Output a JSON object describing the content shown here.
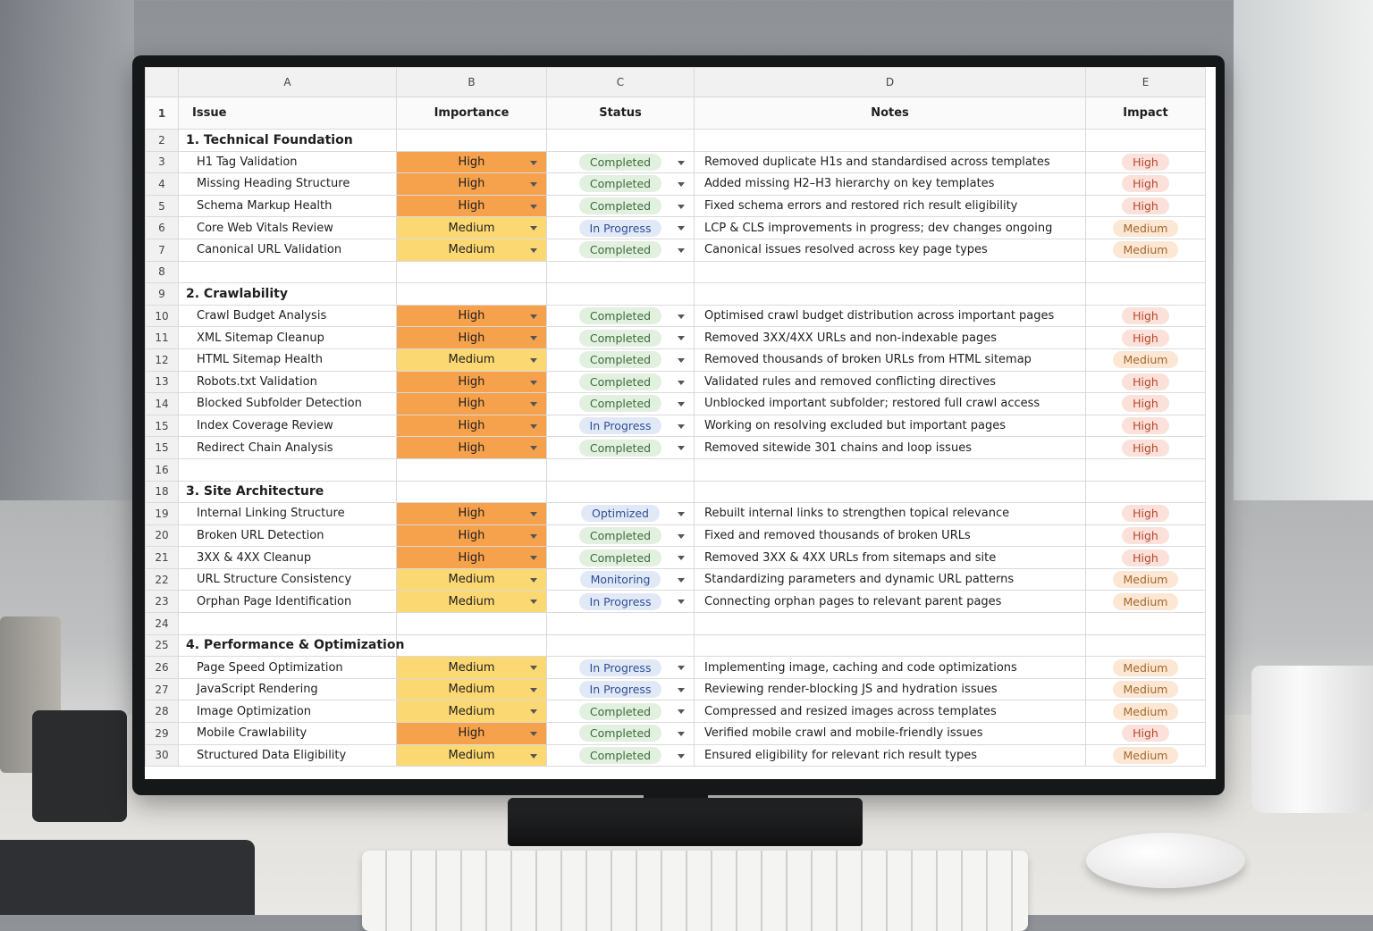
{
  "columns": [
    "A",
    "B",
    "C",
    "D",
    "E"
  ],
  "header": {
    "row": "1",
    "cells": [
      "Issue",
      "Importance",
      "Status",
      "Notes",
      "Impact"
    ]
  },
  "importance_colors": {
    "High": "#f6a14c",
    "Medium": "#fcd873"
  },
  "status_colors": {
    "Completed": [
      "#e2f0df",
      "#3d6b3b"
    ],
    "In Progress": [
      "#e2e9f6",
      "#2c4f96"
    ],
    "Optimized": [
      "#e2e9f6",
      "#2c4f96"
    ],
    "Monitoring": [
      "#e2e9f6",
      "#2c4f96"
    ]
  },
  "impact_colors": {
    "High": [
      "#fbe1da",
      "#b5472c"
    ],
    "Medium": [
      "#fbe7d4",
      "#a5682a"
    ]
  },
  "rows": [
    {
      "num": "2",
      "section": "1. Technical Foundation"
    },
    {
      "num": "3",
      "issue": "H1 Tag Validation",
      "importance": "High",
      "status": "Completed",
      "notes": "Removed duplicate H1s and standardised across templates",
      "impact": "High"
    },
    {
      "num": "4",
      "issue": "Missing Heading Structure",
      "importance": "High",
      "status": "Completed",
      "notes": "Added missing H2–H3 hierarchy on key templates",
      "impact": "High"
    },
    {
      "num": "5",
      "issue": "Schema Markup Health",
      "importance": "High",
      "status": "Completed",
      "notes": "Fixed schema errors and restored rich result eligibility",
      "impact": "High"
    },
    {
      "num": "6",
      "issue": "Core Web Vitals Review",
      "importance": "Medium",
      "status": "In Progress",
      "notes": "LCP & CLS improvements in progress; dev changes ongoing",
      "impact": "Medium"
    },
    {
      "num": "7",
      "issue": "Canonical URL Validation",
      "importance": "Medium",
      "status": "Completed",
      "notes": "Canonical issues resolved across key page types",
      "impact": "Medium"
    },
    {
      "num": "8"
    },
    {
      "num": "9",
      "section": "2. Crawlability"
    },
    {
      "num": "10",
      "issue": "Crawl Budget Analysis",
      "importance": "High",
      "status": "Completed",
      "notes": "Optimised crawl budget distribution across important pages",
      "impact": "High"
    },
    {
      "num": "11",
      "issue": "XML Sitemap Cleanup",
      "importance": "High",
      "status": "Completed",
      "notes": "Removed 3XX/4XX URLs and non-indexable pages",
      "impact": "High"
    },
    {
      "num": "12",
      "issue": "HTML Sitemap Health",
      "importance": "Medium",
      "status": "Completed",
      "notes": "Removed thousands of broken URLs from HTML sitemap",
      "impact": "Medium"
    },
    {
      "num": "13",
      "issue": "Robots.txt Validation",
      "importance": "High",
      "status": "Completed",
      "notes": "Validated rules and removed conflicting directives",
      "impact": "High"
    },
    {
      "num": "14",
      "issue": "Blocked Subfolder Detection",
      "importance": "High",
      "status": "Completed",
      "notes": "Unblocked important subfolder; restored full crawl access",
      "impact": "High"
    },
    {
      "num": "15",
      "issue": "Index Coverage Review",
      "importance": "High",
      "status": "In Progress",
      "notes": "Working on resolving excluded but important pages",
      "impact": "High"
    },
    {
      "num": "15",
      "issue": "Redirect Chain Analysis",
      "importance": "High",
      "status": "Completed",
      "notes": "Removed sitewide 301 chains and loop issues",
      "impact": "High"
    },
    {
      "num": "16"
    },
    {
      "num": "18",
      "section": "3. Site Architecture"
    },
    {
      "num": "19",
      "issue": "Internal Linking Structure",
      "importance": "High",
      "status": "Optimized",
      "notes": "Rebuilt internal links to strengthen topical relevance",
      "impact": "High"
    },
    {
      "num": "20",
      "issue": "Broken URL Detection",
      "importance": "High",
      "status": "Completed",
      "notes": "Fixed and removed thousands of broken URLs",
      "impact": "High"
    },
    {
      "num": "21",
      "issue": "3XX & 4XX Cleanup",
      "importance": "High",
      "status": "Completed",
      "notes": "Removed 3XX & 4XX URLs from sitemaps and site",
      "impact": "High"
    },
    {
      "num": "22",
      "issue": "URL Structure Consistency",
      "importance": "Medium",
      "status": "Monitoring",
      "notes": "Standardizing parameters and dynamic URL patterns",
      "impact": "Medium"
    },
    {
      "num": "23",
      "issue": "Orphan Page Identification",
      "importance": "Medium",
      "status": "In Progress",
      "notes": "Connecting orphan pages to relevant parent pages",
      "impact": "Medium"
    },
    {
      "num": "24"
    },
    {
      "num": "25",
      "section": "4. Performance & Optimization"
    },
    {
      "num": "26",
      "issue": "Page Speed Optimization",
      "importance": "Medium",
      "status": "In Progress",
      "notes": "Implementing image, caching and code optimizations",
      "impact": "Medium"
    },
    {
      "num": "27",
      "issue": "JavaScript Rendering",
      "importance": "Medium",
      "status": "In Progress",
      "notes": "Reviewing render-blocking JS and hydration issues",
      "impact": "Medium"
    },
    {
      "num": "28",
      "issue": "Image Optimization",
      "importance": "Medium",
      "status": "Completed",
      "notes": "Compressed and resized images across templates",
      "impact": "Medium"
    },
    {
      "num": "29",
      "issue": "Mobile Crawlability",
      "importance": "High",
      "status": "Completed",
      "notes": "Verified mobile crawl and mobile-friendly issues",
      "impact": "High"
    },
    {
      "num": "30",
      "issue": "Structured Data Eligibility",
      "importance": "Medium",
      "status": "Completed",
      "notes": "Ensured eligibility for relevant rich result types",
      "impact": "Medium"
    }
  ]
}
